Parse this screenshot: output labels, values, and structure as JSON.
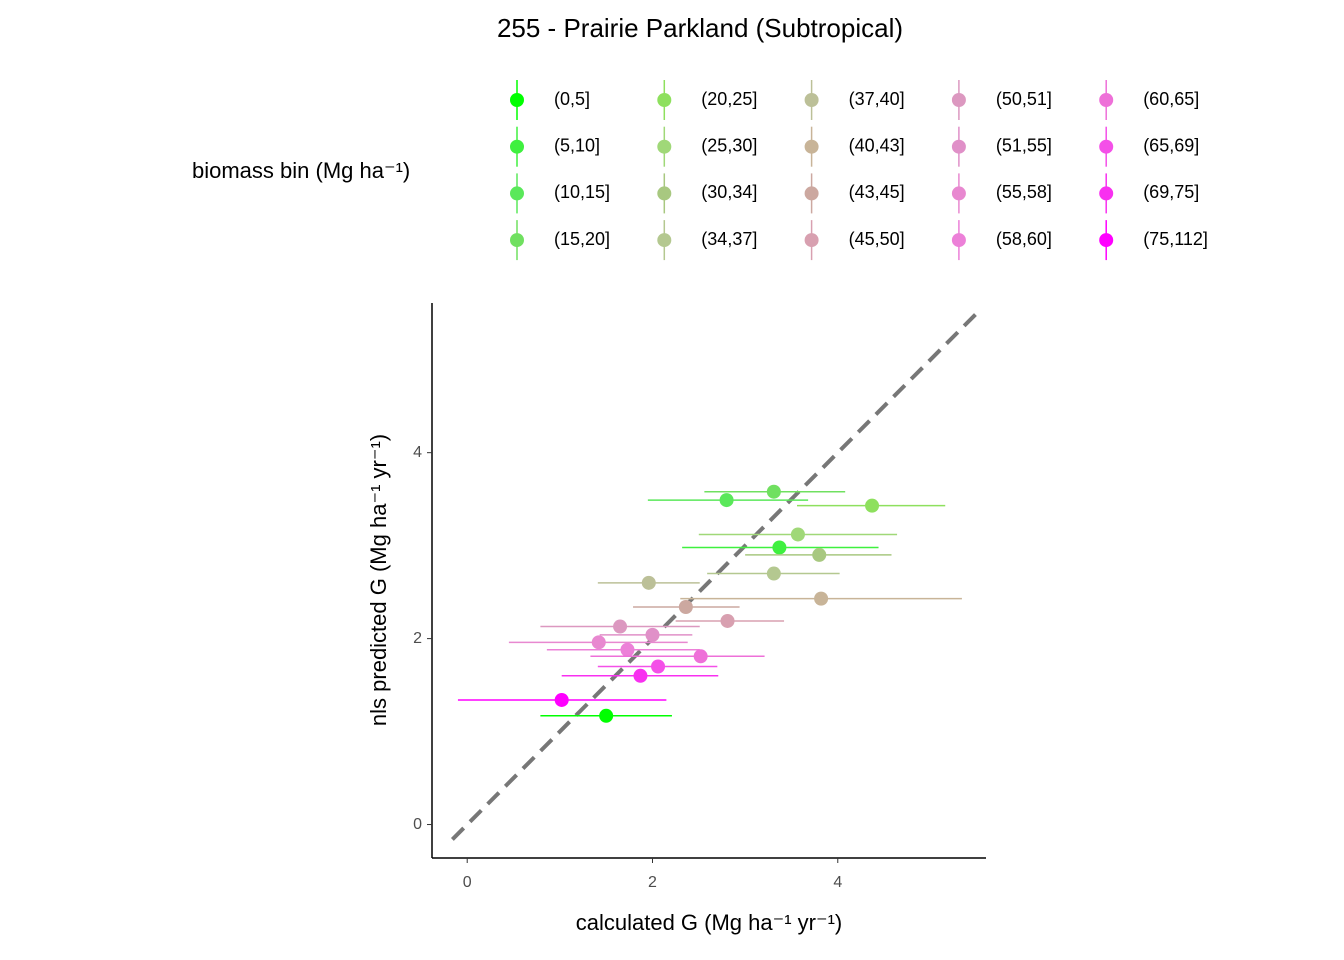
{
  "chart_data": {
    "type": "scatter",
    "title": "255 - Prairie Parkland (Subtropical)",
    "legend_title": "biomass bin (Mg ha⁻¹)",
    "x_label": "calculated G (Mg ha⁻¹ yr⁻¹)",
    "y_label": "nls predicted G (Mg ha⁻¹ yr⁻¹)",
    "xlim": [
      -0.38,
      5.6
    ],
    "ylim": [
      -0.36,
      5.61
    ],
    "xticks": [
      0,
      2,
      4
    ],
    "yticks": [
      0,
      2,
      4
    ],
    "series": [
      {
        "name": "(0,5]",
        "color": "#00ff00",
        "x": [
          1.5
        ],
        "values": [
          1.17
        ],
        "xmin": [
          0.79
        ],
        "xmax": [
          2.21
        ]
      },
      {
        "name": "(5,10]",
        "color": "#3ff03f",
        "x": [
          3.37
        ],
        "values": [
          2.98
        ],
        "xmin": [
          2.32
        ],
        "xmax": [
          4.44
        ]
      },
      {
        "name": "(10,15]",
        "color": "#5ae85a",
        "x": [
          2.8
        ],
        "values": [
          3.49
        ],
        "xmin": [
          1.95
        ],
        "xmax": [
          3.68
        ]
      },
      {
        "name": "(15,20]",
        "color": "#70e060",
        "x": [
          3.31
        ],
        "values": [
          3.58
        ],
        "xmin": [
          2.56
        ],
        "xmax": [
          4.08
        ]
      },
      {
        "name": "(20,25]",
        "color": "#8ee05e",
        "x": [
          4.37
        ],
        "values": [
          3.43
        ],
        "xmin": [
          3.56
        ],
        "xmax": [
          5.16
        ]
      },
      {
        "name": "(25,30]",
        "color": "#a0d878",
        "x": [
          3.57
        ],
        "values": [
          3.12
        ],
        "xmin": [
          2.5
        ],
        "xmax": [
          4.64
        ]
      },
      {
        "name": "(30,34]",
        "color": "#a8c880",
        "x": [
          3.8
        ],
        "values": [
          2.9
        ],
        "xmin": [
          3.0
        ],
        "xmax": [
          4.58
        ]
      },
      {
        "name": "(34,37]",
        "color": "#b4c890",
        "x": [
          3.31
        ],
        "values": [
          2.7
        ],
        "xmin": [
          2.59
        ],
        "xmax": [
          4.02
        ]
      },
      {
        "name": "(37,40]",
        "color": "#bcc098",
        "x": [
          1.96
        ],
        "values": [
          2.6
        ],
        "xmin": [
          1.41
        ],
        "xmax": [
          2.51
        ]
      },
      {
        "name": "(40,43]",
        "color": "#c8b498",
        "x": [
          3.82
        ],
        "values": [
          2.43
        ],
        "xmin": [
          2.3
        ],
        "xmax": [
          5.34
        ]
      },
      {
        "name": "(43,45]",
        "color": "#cca8a0",
        "x": [
          2.36
        ],
        "values": [
          2.34
        ],
        "xmin": [
          1.79
        ],
        "xmax": [
          2.94
        ]
      },
      {
        "name": "(45,50]",
        "color": "#d8a0b0",
        "x": [
          2.81
        ],
        "values": [
          2.19
        ],
        "xmin": [
          2.25
        ],
        "xmax": [
          3.42
        ]
      },
      {
        "name": "(50,51]",
        "color": "#dc98c0",
        "x": [
          1.65
        ],
        "values": [
          2.13
        ],
        "xmin": [
          0.79
        ],
        "xmax": [
          2.51
        ]
      },
      {
        "name": "(51,55]",
        "color": "#e090c8",
        "x": [
          2.0
        ],
        "values": [
          2.04
        ],
        "xmin": [
          1.43
        ],
        "xmax": [
          2.43
        ]
      },
      {
        "name": "(55,58]",
        "color": "#e888d0",
        "x": [
          1.42
        ],
        "values": [
          1.96
        ],
        "xmin": [
          0.45
        ],
        "xmax": [
          2.38
        ]
      },
      {
        "name": "(58,60]",
        "color": "#ec80d8",
        "x": [
          1.73
        ],
        "values": [
          1.88
        ],
        "xmin": [
          0.86
        ],
        "xmax": [
          2.51
        ]
      },
      {
        "name": "(60,65]",
        "color": "#ee70d8",
        "x": [
          2.52
        ],
        "values": [
          1.81
        ],
        "xmin": [
          1.33
        ],
        "xmax": [
          3.21
        ]
      },
      {
        "name": "(65,69]",
        "color": "#f450e8",
        "x": [
          2.06
        ],
        "values": [
          1.7
        ],
        "xmin": [
          1.41
        ],
        "xmax": [
          2.7
        ]
      },
      {
        "name": "(69,75]",
        "color": "#f830f0",
        "x": [
          1.87
        ],
        "values": [
          1.6
        ],
        "xmin": [
          1.02
        ],
        "xmax": [
          2.71
        ]
      },
      {
        "name": "(75,112]",
        "color": "#ff00ff",
        "x": [
          1.02
        ],
        "values": [
          1.34
        ],
        "xmin": [
          -0.1
        ],
        "xmax": [
          2.15
        ]
      }
    ]
  }
}
